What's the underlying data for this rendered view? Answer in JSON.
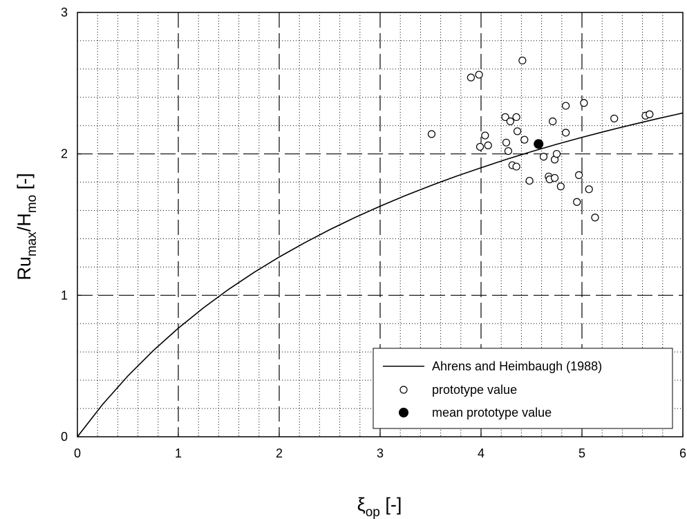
{
  "chart_data": {
    "type": "scatter",
    "title": "",
    "xlabel": {
      "base": "ξ",
      "sub": "op",
      "suffix": " [-]"
    },
    "ylabel": {
      "parts": [
        {
          "t": "Ru",
          "sub": false
        },
        {
          "t": "max",
          "sub": true
        },
        {
          "t": "/H",
          "sub": false
        },
        {
          "t": "mo",
          "sub": true
        },
        {
          "t": " [-]",
          "sub": false
        }
      ]
    },
    "xlim": [
      0,
      6
    ],
    "ylim": [
      0,
      3
    ],
    "x_ticks": [
      0,
      1,
      2,
      3,
      4,
      5,
      6
    ],
    "y_ticks": [
      0,
      1,
      2,
      3
    ],
    "x_tick_labels": [
      "0",
      "1",
      "2",
      "3",
      "4",
      "5",
      "6"
    ],
    "y_tick_labels": [
      "0",
      "1",
      "2",
      "3"
    ],
    "grid": {
      "major": "dashed",
      "minor": "dotted",
      "x_minor_step": 0.2,
      "y_minor_step": 0.2
    },
    "legend": {
      "placement": "bottom-right"
    },
    "series": [
      {
        "name": "Ahrens and Heimbaugh (1988)",
        "kind": "line",
        "style": "solid",
        "color": "#000000",
        "x": [
          0,
          0.25,
          0.5,
          0.75,
          1.0,
          1.25,
          1.5,
          1.75,
          2.0,
          2.25,
          2.5,
          2.75,
          3.0,
          3.25,
          3.5,
          3.75,
          4.0,
          4.25,
          4.5,
          4.75,
          5.0,
          5.25,
          5.5,
          5.75,
          6.0
        ],
        "y": [
          0,
          0.229,
          0.43,
          0.608,
          0.768,
          0.912,
          1.043,
          1.162,
          1.271,
          1.371,
          1.464,
          1.55,
          1.63,
          1.705,
          1.775,
          1.841,
          1.902,
          1.961,
          2.016,
          2.068,
          2.117,
          2.163,
          2.207,
          2.249,
          2.289
        ]
      },
      {
        "name": "prototype value",
        "kind": "scatter",
        "marker": "open-circle",
        "color": "#000000",
        "points": [
          [
            3.51,
            2.14
          ],
          [
            3.9,
            2.54
          ],
          [
            3.98,
            2.56
          ],
          [
            3.99,
            2.05
          ],
          [
            4.04,
            2.13
          ],
          [
            4.07,
            2.06
          ],
          [
            4.24,
            2.26
          ],
          [
            4.25,
            2.08
          ],
          [
            4.27,
            2.02
          ],
          [
            4.29,
            2.23
          ],
          [
            4.31,
            1.92
          ],
          [
            4.35,
            2.26
          ],
          [
            4.36,
            2.16
          ],
          [
            4.35,
            1.91
          ],
          [
            4.41,
            2.66
          ],
          [
            4.43,
            2.1
          ],
          [
            4.48,
            1.81
          ],
          [
            4.62,
            1.98
          ],
          [
            4.67,
            1.84
          ],
          [
            4.68,
            1.82
          ],
          [
            4.71,
            2.23
          ],
          [
            4.73,
            1.83
          ],
          [
            4.73,
            1.96
          ],
          [
            4.75,
            2.0
          ],
          [
            4.79,
            1.77
          ],
          [
            4.84,
            2.34
          ],
          [
            4.84,
            2.15
          ],
          [
            4.95,
            1.66
          ],
          [
            4.97,
            1.85
          ],
          [
            5.02,
            2.36
          ],
          [
            5.07,
            1.75
          ],
          [
            5.13,
            1.55
          ],
          [
            5.32,
            2.25
          ],
          [
            5.63,
            2.27
          ],
          [
            5.67,
            2.28
          ]
        ]
      },
      {
        "name": "mean prototype value",
        "kind": "scatter",
        "marker": "filled-circle",
        "color": "#000000",
        "points": [
          [
            4.57,
            2.07
          ]
        ]
      }
    ]
  }
}
